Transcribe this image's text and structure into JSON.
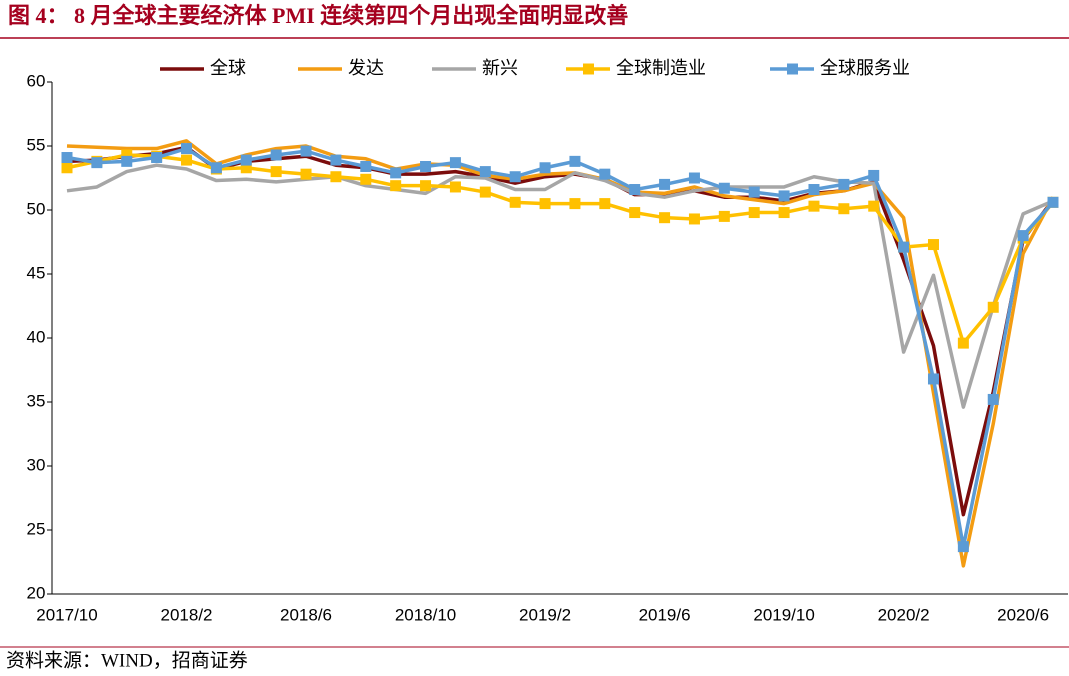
{
  "chart_data": {
    "type": "line",
    "title": "图 4：  8 月全球主要经济体 PMI 连续第四个月出现全面明显改善",
    "source": "资料来源：WIND，招商证券",
    "categories": [
      "2017/10",
      null,
      null,
      null,
      "2018/2",
      null,
      null,
      null,
      "2018/6",
      null,
      null,
      null,
      "2018/10",
      null,
      null,
      null,
      "2019/2",
      null,
      null,
      null,
      "2019/6",
      null,
      null,
      null,
      "2019/10",
      null,
      null,
      null,
      "2020/2",
      null,
      null,
      null,
      "2020/6",
      null
    ],
    "ylim": [
      20,
      60
    ],
    "yticks": [
      20,
      25,
      30,
      35,
      40,
      45,
      50,
      55,
      60
    ],
    "legend": "top",
    "series": [
      {
        "name": "全球",
        "color": "#7b0c0c",
        "marker": false,
        "values": [
          53.8,
          53.9,
          54.2,
          54.4,
          54.9,
          53.2,
          53.8,
          54.0,
          54.2,
          53.5,
          53.3,
          52.8,
          52.8,
          53.0,
          52.6,
          52.1,
          52.6,
          52.8,
          52.4,
          51.2,
          51.2,
          51.5,
          51.0,
          51.0,
          50.7,
          51.3,
          51.5,
          52.2,
          46.1,
          39.4,
          26.2,
          35.8,
          47.7,
          50.8
        ]
      },
      {
        "name": "发达",
        "color": "#f39c12",
        "marker": false,
        "values": [
          55.0,
          54.9,
          54.8,
          54.8,
          55.4,
          53.6,
          54.3,
          54.8,
          55.0,
          54.2,
          54.0,
          53.2,
          53.6,
          53.5,
          52.7,
          52.4,
          52.8,
          52.9,
          52.4,
          51.4,
          51.3,
          51.8,
          51.1,
          50.8,
          50.5,
          51.2,
          51.5,
          52.1,
          49.4,
          35.7,
          22.2,
          33.3,
          46.6,
          51.0
        ]
      },
      {
        "name": "新兴",
        "color": "#a6a6a6",
        "marker": false,
        "values": [
          51.5,
          51.8,
          53.0,
          53.5,
          53.2,
          52.3,
          52.4,
          52.2,
          52.4,
          52.6,
          51.9,
          51.6,
          51.3,
          52.6,
          52.5,
          51.6,
          51.6,
          52.9,
          52.3,
          51.3,
          51.0,
          51.5,
          51.8,
          51.8,
          51.8,
          52.6,
          52.2,
          52.1,
          38.9,
          44.9,
          34.6,
          42.5,
          49.7,
          50.7
        ]
      },
      {
        "name": "全球制造业",
        "color": "#ffc000",
        "marker": true,
        "values": [
          53.3,
          53.8,
          54.3,
          54.2,
          53.9,
          53.2,
          53.3,
          53.0,
          52.8,
          52.6,
          52.4,
          51.9,
          51.9,
          51.8,
          51.4,
          50.6,
          50.5,
          50.5,
          50.5,
          49.8,
          49.4,
          49.3,
          49.5,
          49.8,
          49.8,
          50.3,
          50.1,
          50.3,
          47.1,
          47.3,
          39.6,
          42.4,
          47.8,
          50.6
        ]
      },
      {
        "name": "全球服务业",
        "color": "#5b9bd5",
        "marker": true,
        "values": [
          54.1,
          53.7,
          53.8,
          54.1,
          54.8,
          53.3,
          53.9,
          54.3,
          54.6,
          53.9,
          53.4,
          52.9,
          53.4,
          53.7,
          53.0,
          52.6,
          53.3,
          53.8,
          52.8,
          51.6,
          52.0,
          52.5,
          51.7,
          51.4,
          51.1,
          51.6,
          52.0,
          52.7,
          47.1,
          36.8,
          23.7,
          35.2,
          48.0,
          50.6
        ]
      }
    ]
  }
}
